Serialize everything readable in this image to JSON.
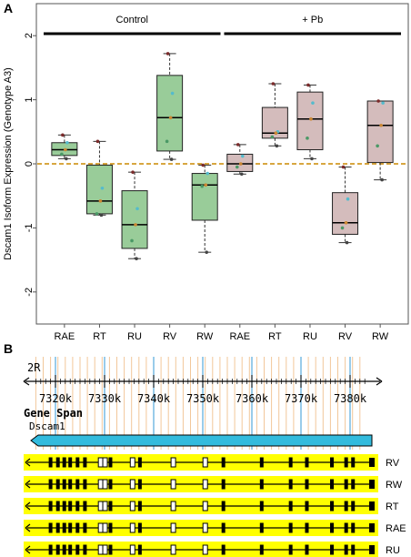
{
  "panels": {
    "a": "A",
    "b": "B"
  },
  "chart_data": {
    "type": "box",
    "ylabel": "Dscam1 Isoform Expression (Genotype A3)",
    "ylim": [
      -2.5,
      2.5
    ],
    "yticks": [
      -2,
      -1,
      0,
      1,
      2
    ],
    "grid": false,
    "reference_line": {
      "y": 0,
      "color": "#cc8800"
    },
    "groups": [
      {
        "label": "Control",
        "categories": [
          "RAE",
          "RT",
          "RU",
          "RV",
          "RW"
        ],
        "color": "#99cc99"
      },
      {
        "label": "+ Pb",
        "categories": [
          "RAE",
          "RT",
          "RU",
          "RV",
          "RW"
        ],
        "color": "#d4bcbc"
      }
    ],
    "boxes": [
      {
        "group": "Control",
        "category": "RAE",
        "whisker_low": 0.08,
        "q1": 0.13,
        "median": 0.22,
        "q3": 0.33,
        "whisker_high": 0.45,
        "points": [
          0.45,
          0.33,
          0.22,
          0.15,
          0.08
        ]
      },
      {
        "group": "Control",
        "category": "RT",
        "whisker_low": -0.8,
        "q1": -0.78,
        "median": -0.58,
        "q3": -0.02,
        "whisker_high": 0.35,
        "points": [
          0.35,
          -0.38,
          -0.58,
          -0.78,
          -0.8
        ]
      },
      {
        "group": "Control",
        "category": "RU",
        "whisker_low": -1.48,
        "q1": -1.32,
        "median": -0.95,
        "q3": -0.42,
        "whisker_high": -0.13,
        "points": [
          -0.13,
          -0.7,
          -0.95,
          -1.2,
          -1.48
        ]
      },
      {
        "group": "Control",
        "category": "RV",
        "whisker_low": 0.07,
        "q1": 0.2,
        "median": 0.72,
        "q3": 1.38,
        "whisker_high": 1.72,
        "points": [
          1.72,
          1.1,
          0.72,
          0.35,
          0.07
        ]
      },
      {
        "group": "Control",
        "category": "RW",
        "whisker_low": -1.38,
        "q1": -0.88,
        "median": -0.33,
        "q3": -0.15,
        "whisker_high": -0.02,
        "points": [
          -0.02,
          -0.15,
          -0.33,
          -0.35,
          -1.38
        ]
      },
      {
        "group": "+ Pb",
        "category": "RAE",
        "whisker_low": -0.16,
        "q1": -0.12,
        "median": 0.0,
        "q3": 0.15,
        "whisker_high": 0.3,
        "points": [
          0.3,
          0.12,
          0.0,
          -0.05,
          -0.16
        ]
      },
      {
        "group": "+ Pb",
        "category": "RT",
        "whisker_low": 0.28,
        "q1": 0.4,
        "median": 0.48,
        "q3": 0.88,
        "whisker_high": 1.25,
        "points": [
          1.25,
          0.5,
          0.48,
          0.42,
          0.28
        ]
      },
      {
        "group": "+ Pb",
        "category": "RU",
        "whisker_low": 0.08,
        "q1": 0.22,
        "median": 0.7,
        "q3": 1.12,
        "whisker_high": 1.23,
        "points": [
          1.23,
          0.95,
          0.7,
          0.4,
          0.08
        ]
      },
      {
        "group": "+ Pb",
        "category": "RV",
        "whisker_low": -1.23,
        "q1": -1.1,
        "median": -0.92,
        "q3": -0.45,
        "whisker_high": -0.05,
        "points": [
          -0.05,
          -0.55,
          -0.92,
          -1.0,
          -1.23
        ]
      },
      {
        "group": "+ Pb",
        "category": "RW",
        "whisker_low": -0.25,
        "q1": 0.02,
        "median": 0.6,
        "q3": 0.98,
        "whisker_high": 0.98,
        "points": [
          0.98,
          0.95,
          0.6,
          0.28,
          -0.25
        ]
      }
    ],
    "point_colors": [
      "#7b2a2a",
      "#55bbcc",
      "#cc8833",
      "#4a9966",
      "#444444"
    ]
  },
  "gene_track": {
    "chromosome": "2R",
    "coord_labels": [
      "7320k",
      "7330k",
      "7340k",
      "7350k",
      "7360k",
      "7370k",
      "7380k"
    ],
    "coord_range_kb": [
      7315,
      7385
    ],
    "heading": "Gene Span",
    "gene_name": "Dscam1",
    "gene_color": "#33bbdd",
    "track_color": "#ffff00",
    "isoforms": [
      {
        "name": "RV",
        "exons": [
          7319,
          7320.5,
          7321.8,
          7323,
          7324.5,
          7326,
          7329.2,
          7330.1,
          7331.2,
          7335.7,
          7337.2,
          7344,
          7350.5,
          7354.2,
          7362,
          7367.9,
          7371.2,
          7376.3,
          7379.2,
          7380.6
        ]
      },
      {
        "name": "RW",
        "exons": [
          7319,
          7320.5,
          7321.8,
          7323,
          7324.5,
          7326,
          7329.2,
          7330.1,
          7331.2,
          7335.7,
          7337.2,
          7344,
          7350.5,
          7354.2,
          7362,
          7367.9,
          7371.2,
          7376.3,
          7379.2,
          7380.6
        ]
      },
      {
        "name": "RT",
        "exons": [
          7319,
          7320.5,
          7321.8,
          7323,
          7324.5,
          7326,
          7329.2,
          7330.1,
          7331.2,
          7335.7,
          7337.2,
          7344,
          7350.5,
          7354.2,
          7362,
          7367.9,
          7371.2,
          7376.3,
          7379.2,
          7380.6
        ]
      },
      {
        "name": "RAE",
        "exons": [
          7319,
          7320.5,
          7321.8,
          7323,
          7324.5,
          7326,
          7329.2,
          7330.1,
          7331.2,
          7335.7,
          7337.2,
          7344,
          7350.5,
          7354.2,
          7362,
          7367.9,
          7371.2,
          7376.3,
          7379.2,
          7380.6
        ]
      },
      {
        "name": "RU",
        "exons": [
          7319,
          7320.5,
          7321.8,
          7323,
          7324.5,
          7326,
          7329.2,
          7330.1,
          7331.2,
          7335.7,
          7337.2,
          7344,
          7350.5,
          7354.2,
          7362,
          7367.9,
          7371.2,
          7376.3,
          7379.2,
          7380.6
        ]
      }
    ]
  }
}
